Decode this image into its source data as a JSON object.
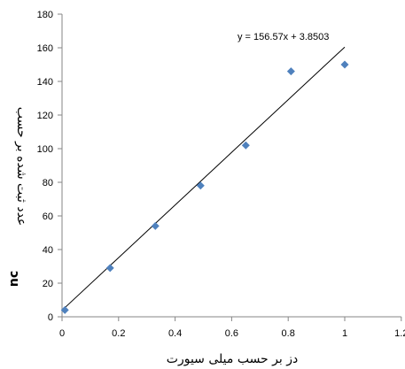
{
  "chart_data": {
    "type": "scatter",
    "title": "",
    "xlabel": "دز بر حسب میلی سیورت",
    "ylabel": "عدد ثبت شده بر حسب",
    "ylabel_unit": "nc",
    "xlim": [
      0,
      1.2
    ],
    "ylim": [
      0,
      180
    ],
    "x_ticks": [
      "0",
      "0.2",
      "0.4",
      "0.6",
      "0.8",
      "1",
      "1.2"
    ],
    "y_ticks": [
      "0",
      "20",
      "40",
      "60",
      "80",
      "100",
      "120",
      "140",
      "160",
      "180"
    ],
    "grid": false,
    "legend": "none",
    "points": [
      {
        "x": 0.01,
        "y": 4
      },
      {
        "x": 0.17,
        "y": 29
      },
      {
        "x": 0.33,
        "y": 54
      },
      {
        "x": 0.49,
        "y": 78
      },
      {
        "x": 0.65,
        "y": 102
      },
      {
        "x": 0.81,
        "y": 146
      },
      {
        "x": 1.0,
        "y": 150
      }
    ],
    "trendline": {
      "slope": 156.57,
      "intercept": 3.8503,
      "x_range": [
        0,
        1.0
      ],
      "equation": "y = 156.57x + 3.8503"
    },
    "marker_color": "#4f81bd",
    "line_color": "#000000"
  }
}
